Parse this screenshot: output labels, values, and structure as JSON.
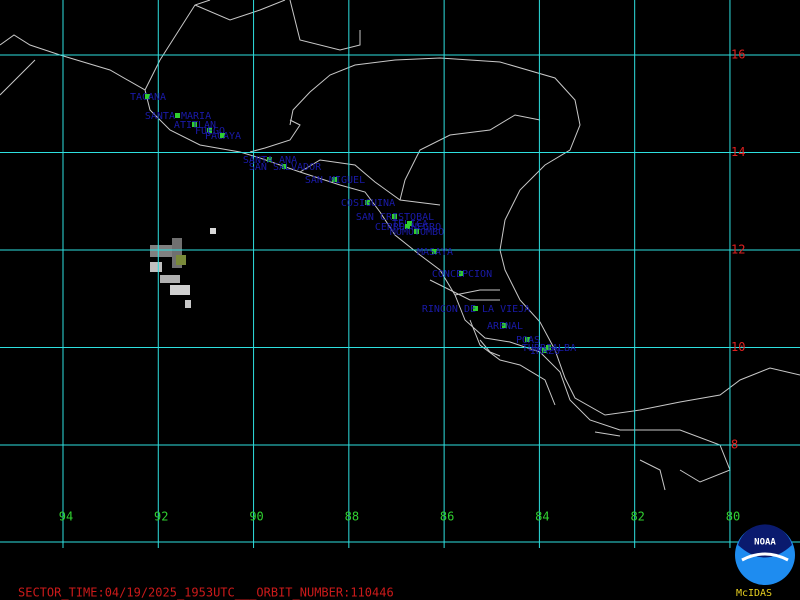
{
  "volcanoes": [
    "TACANA",
    "SANTA MARIA",
    "ATITLAN",
    "FUEGO",
    "PACAYA",
    "SANTA ANA",
    "SAN SALVADOR",
    "SAN MIGUEL",
    "COSIGUINA",
    "SAN CRISTOBAL",
    "TELICA",
    "CERRO NEGRO",
    "MOMOTOMBO",
    "MASAYA",
    "CONCEPCION",
    "RINCON DE LA VIEJA",
    "ARENAL",
    "POAS",
    "TURRIALBA",
    "IRAZU"
  ],
  "latitude_labels": [
    16,
    14,
    12,
    10,
    8
  ],
  "longitude_labels": [
    94,
    92,
    90,
    88,
    86,
    84,
    82,
    80
  ],
  "footer": "SECTOR_TIME:04/19/2025_1953UTC___ORBIT_NUMBER:110446",
  "logo": {
    "text": "NOAA",
    "caption": "McIDAS"
  }
}
